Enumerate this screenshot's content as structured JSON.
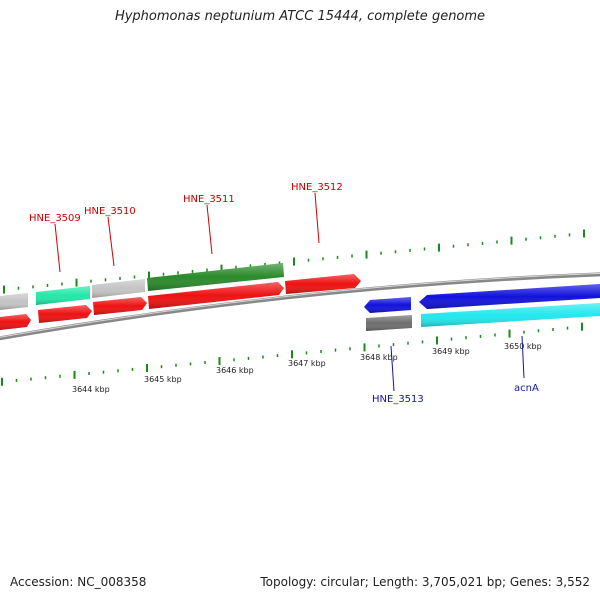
{
  "title": "Hyphomonas neptunium ATCC 15444, complete genome",
  "footer": {
    "accession": "Accession: NC_008358",
    "summary": "Topology: circular; Length: 3,705,021 bp; Genes: 3,552"
  },
  "map": {
    "position_labels": [
      "3644 kbp",
      "3645 kbp",
      "3646 kbp",
      "3647 kbp",
      "3648 kbp",
      "3649 kbp",
      "3650 kbp"
    ],
    "gene_labels_forward": [
      "HNE_3509",
      "HNE_3510",
      "HNE_3511",
      "HNE_3512"
    ],
    "gene_labels_reverse": [
      "HNE_3513",
      "acnA"
    ],
    "colors": {
      "forward_cds": "#ee1111",
      "reverse_cds": "#1111dd",
      "gene_gray": "#c4c4c4",
      "gene_green": "#2a8a2a",
      "gene_mint": "#22e8a8",
      "gene_cyan": "#22e8ee",
      "gene_darkgray": "#6e6e6e",
      "backbone": "#888888",
      "tick": "#1a8a1a",
      "label_forward": "#cc0000",
      "label_reverse": "#1515a0"
    }
  }
}
